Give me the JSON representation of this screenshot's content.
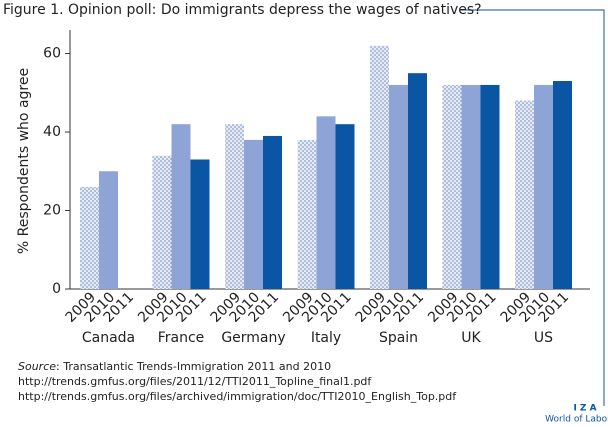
{
  "chart_data": {
    "type": "bar",
    "title": "Figure 1. Opinion poll: Do immigrants depress the wages of natives?",
    "y_label": "% Respondents who agree",
    "categories": [
      "Canada",
      "France",
      "Germany",
      "Italy",
      "Spain",
      "UK",
      "US"
    ],
    "series": [
      {
        "name": "2009",
        "color": "#dde4f2",
        "pattern": "dots",
        "values": [
          26,
          34,
          42,
          38,
          62,
          52,
          48
        ]
      },
      {
        "name": "2010",
        "color": "#8fa4d6",
        "values": [
          30,
          42,
          38,
          44,
          52,
          52,
          52
        ]
      },
      {
        "name": "2011",
        "color": "#0b56a4",
        "values": [
          null,
          33,
          39,
          42,
          55,
          52,
          53
        ]
      }
    ],
    "ylim": [
      0,
      66
    ],
    "yticks": [
      0,
      20,
      40,
      60
    ],
    "source_label": "Source",
    "source_text": ": Transatlantic Trends-Immigration 2011 and 2010",
    "source_urls": [
      "http://trends.gmfus.org/files/2011/12/TTI2011_Topline_final1.pdf",
      "http://trends.gmfus.org/files/archived/immigration/doc/TTI2010_English_Top.pdf"
    ],
    "logo": "I Z A",
    "logo_sub": "World of Labor"
  }
}
